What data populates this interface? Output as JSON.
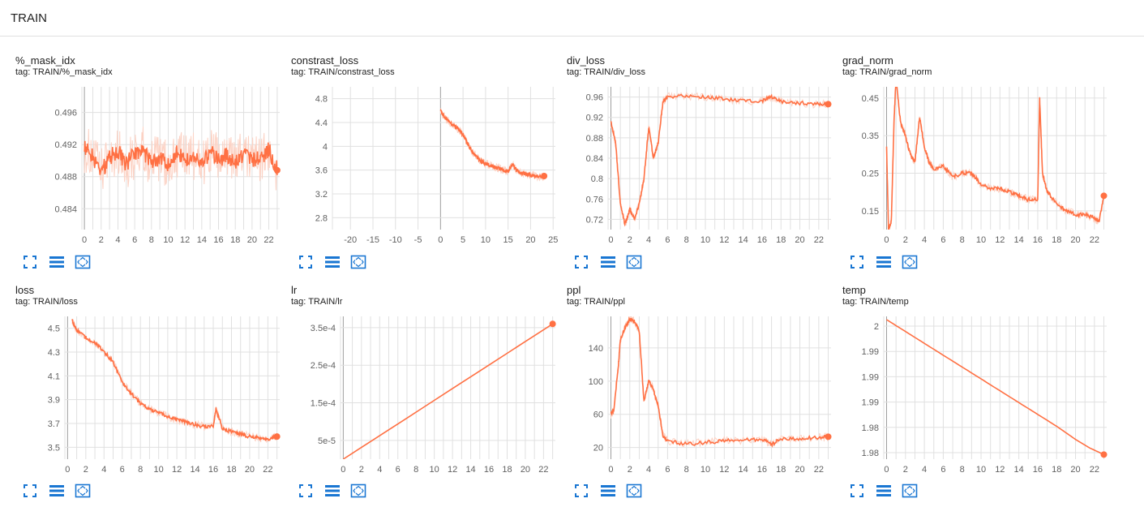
{
  "header": {
    "title": "TRAIN"
  },
  "colors": {
    "line": "#ff7043",
    "smooth_fill": "#fcd2c4",
    "grid": "#e0e0e0",
    "axis": "#9e9e9e",
    "tool_icon": "#1976d2"
  },
  "toolbar_icons": [
    "fullscreen-icon",
    "list-icon",
    "fit-domain-icon"
  ],
  "cards": [
    {
      "title": "%_mask_idx",
      "tag": "tag: TRAIN/%_mask_idx"
    },
    {
      "title": "constrast_loss",
      "tag": "tag: TRAIN/constrast_loss"
    },
    {
      "title": "div_loss",
      "tag": "tag: TRAIN/div_loss"
    },
    {
      "title": "grad_norm",
      "tag": "tag: TRAIN/grad_norm"
    },
    {
      "title": "loss",
      "tag": "tag: TRAIN/loss"
    },
    {
      "title": "lr",
      "tag": "tag: TRAIN/lr"
    },
    {
      "title": "ppl",
      "tag": "tag: TRAIN/ppl"
    },
    {
      "title": "temp",
      "tag": "tag: TRAIN/temp"
    }
  ],
  "chart_data": [
    {
      "type": "line",
      "title": "%_mask_idx",
      "xlim": [
        -0.3,
        23.3
      ],
      "ylim": [
        0.4814,
        0.4992
      ],
      "xticks": [
        "0",
        "2",
        "4",
        "6",
        "8",
        "10",
        "12",
        "14",
        "16",
        "18",
        "20",
        "22"
      ],
      "yticks": [
        "0.484",
        "0.488",
        "0.492",
        "0.496"
      ],
      "series": [
        {
          "x": [
            0,
            1,
            2,
            3,
            4,
            5,
            6,
            7,
            8,
            9,
            10,
            11,
            12,
            13,
            14,
            15,
            16,
            17,
            18,
            19,
            20,
            21,
            22,
            23
          ],
          "y": [
            0.4915,
            0.4905,
            0.4885,
            0.4905,
            0.4912,
            0.4895,
            0.4908,
            0.4912,
            0.4898,
            0.4905,
            0.4893,
            0.491,
            0.49,
            0.4908,
            0.4895,
            0.491,
            0.4902,
            0.4906,
            0.4897,
            0.4909,
            0.4903,
            0.49,
            0.4915,
            0.4888
          ]
        }
      ]
    },
    {
      "type": "line",
      "title": "constrast_loss",
      "xlim": [
        -24,
        25.5
      ],
      "ylim": [
        2.6,
        5.0
      ],
      "xticks": [
        "-20",
        "-15",
        "-10",
        "-5",
        "0",
        "5",
        "10",
        "15",
        "20",
        "25"
      ],
      "yticks": [
        "2.8",
        "3.2",
        "3.6",
        "4",
        "4.4",
        "4.8"
      ],
      "series": [
        {
          "x": [
            0,
            1,
            2,
            3,
            4,
            5,
            6,
            7,
            8,
            9,
            10,
            11,
            12,
            13,
            14,
            15,
            16,
            17,
            18,
            19,
            20,
            21,
            22,
            23
          ],
          "y": [
            4.62,
            4.48,
            4.4,
            4.35,
            4.28,
            4.2,
            4.05,
            3.92,
            3.82,
            3.75,
            3.71,
            3.68,
            3.65,
            3.63,
            3.6,
            3.58,
            3.7,
            3.58,
            3.55,
            3.54,
            3.52,
            3.5,
            3.49,
            3.5
          ]
        }
      ]
    },
    {
      "type": "line",
      "title": "div_loss",
      "xlim": [
        -0.3,
        23.3
      ],
      "ylim": [
        0.7,
        0.98
      ],
      "xticks": [
        "0",
        "2",
        "4",
        "6",
        "8",
        "10",
        "12",
        "14",
        "16",
        "18",
        "20",
        "22"
      ],
      "yticks": [
        "0.72",
        "0.76",
        "0.8",
        "0.84",
        "0.88",
        "0.92",
        "0.96"
      ],
      "series": [
        {
          "x": [
            0,
            0.5,
            1,
            1.5,
            2,
            2.5,
            3,
            3.5,
            4,
            4.5,
            5,
            5.5,
            6,
            8,
            10,
            12,
            14,
            16,
            17,
            18,
            20,
            22,
            23
          ],
          "y": [
            0.91,
            0.87,
            0.75,
            0.71,
            0.74,
            0.72,
            0.75,
            0.8,
            0.9,
            0.84,
            0.87,
            0.95,
            0.96,
            0.962,
            0.96,
            0.956,
            0.952,
            0.952,
            0.96,
            0.951,
            0.948,
            0.946,
            0.946
          ]
        }
      ]
    },
    {
      "type": "line",
      "title": "grad_norm",
      "xlim": [
        -0.3,
        23.3
      ],
      "ylim": [
        0.1,
        0.48
      ],
      "xticks": [
        "0",
        "2",
        "4",
        "6",
        "8",
        "10",
        "12",
        "14",
        "16",
        "18",
        "20",
        "22"
      ],
      "yticks": [
        "0.15",
        "0.25",
        "0.35",
        "0.45"
      ],
      "series": [
        {
          "x": [
            0,
            0.2,
            0.5,
            0.8,
            1,
            1.5,
            2,
            2.5,
            3,
            3.5,
            4,
            4.5,
            5,
            6,
            7,
            8,
            9,
            10,
            11,
            12,
            13,
            14,
            15,
            16,
            16.2,
            16.5,
            17,
            18,
            19,
            20,
            21,
            22,
            22.5,
            23
          ],
          "y": [
            0.32,
            0.1,
            0.12,
            0.4,
            0.5,
            0.38,
            0.35,
            0.3,
            0.28,
            0.4,
            0.32,
            0.28,
            0.26,
            0.27,
            0.24,
            0.25,
            0.25,
            0.22,
            0.21,
            0.21,
            0.2,
            0.19,
            0.18,
            0.18,
            0.45,
            0.25,
            0.2,
            0.17,
            0.15,
            0.14,
            0.14,
            0.13,
            0.12,
            0.19
          ]
        }
      ]
    },
    {
      "type": "line",
      "title": "loss",
      "xlim": [
        -0.3,
        23.3
      ],
      "ylim": [
        3.4,
        4.6
      ],
      "xticks": [
        "0",
        "2",
        "4",
        "6",
        "8",
        "10",
        "12",
        "14",
        "16",
        "18",
        "20",
        "22"
      ],
      "yticks": [
        "3.5",
        "3.7",
        "3.9",
        "4.1",
        "4.3",
        "4.5"
      ],
      "series": [
        {
          "x": [
            0.5,
            1,
            2,
            3,
            4,
            5,
            6,
            7,
            8,
            9,
            10,
            11,
            12,
            13,
            14,
            15,
            16,
            16.3,
            17,
            18,
            19,
            20,
            21,
            22,
            23
          ],
          "y": [
            4.57,
            4.48,
            4.42,
            4.38,
            4.3,
            4.22,
            4.05,
            3.95,
            3.87,
            3.82,
            3.79,
            3.76,
            3.73,
            3.71,
            3.69,
            3.67,
            3.68,
            3.82,
            3.66,
            3.63,
            3.61,
            3.59,
            3.58,
            3.57,
            3.59
          ]
        }
      ]
    },
    {
      "type": "line",
      "title": "lr",
      "xlim": [
        -0.3,
        23.3
      ],
      "ylim": [
        0,
        0.00038
      ],
      "xticks": [
        "0",
        "2",
        "4",
        "6",
        "8",
        "10",
        "12",
        "14",
        "16",
        "18",
        "20",
        "22"
      ],
      "yticks": [
        "5e-5",
        "1.5e-4",
        "2.5e-4",
        "3.5e-4"
      ],
      "series": [
        {
          "x": [
            0,
            23
          ],
          "y": [
            0,
            0.00036
          ]
        }
      ]
    },
    {
      "type": "line",
      "title": "ppl",
      "xlim": [
        -0.3,
        23.3
      ],
      "ylim": [
        6,
        178
      ],
      "xticks": [
        "0",
        "2",
        "4",
        "6",
        "8",
        "10",
        "12",
        "14",
        "16",
        "18",
        "20",
        "22"
      ],
      "yticks": [
        "20",
        "60",
        "100",
        "140"
      ],
      "series": [
        {
          "x": [
            0,
            0.3,
            0.8,
            1,
            1.5,
            2,
            2.5,
            3,
            3.5,
            4,
            4.5,
            5,
            5.5,
            6,
            8,
            10,
            12,
            14,
            16,
            17,
            18,
            20,
            22,
            23
          ],
          "y": [
            60,
            65,
            120,
            150,
            165,
            175,
            172,
            160,
            75,
            100,
            90,
            70,
            35,
            28,
            24,
            26,
            28,
            29,
            30,
            24,
            30,
            31,
            32,
            33
          ]
        }
      ]
    },
    {
      "type": "line",
      "title": "temp",
      "xlim": [
        -0.3,
        23.3
      ],
      "ylim": [
        1.9788,
        2.0005
      ],
      "xticks": [
        "0",
        "2",
        "4",
        "6",
        "8",
        "10",
        "12",
        "14",
        "16",
        "18",
        "20",
        "22"
      ],
      "yticks": [
        "1.98",
        "1.98",
        "1.99",
        "1.99",
        "1.99",
        "2"
      ],
      "series": [
        {
          "x": [
            0,
            3,
            6,
            9,
            12,
            15,
            18,
            20,
            21.5,
            23
          ],
          "y": [
            2.0,
            1.9973,
            1.9946,
            1.9919,
            1.9892,
            1.9865,
            1.9838,
            1.9818,
            1.9805,
            1.9795
          ]
        }
      ]
    }
  ]
}
